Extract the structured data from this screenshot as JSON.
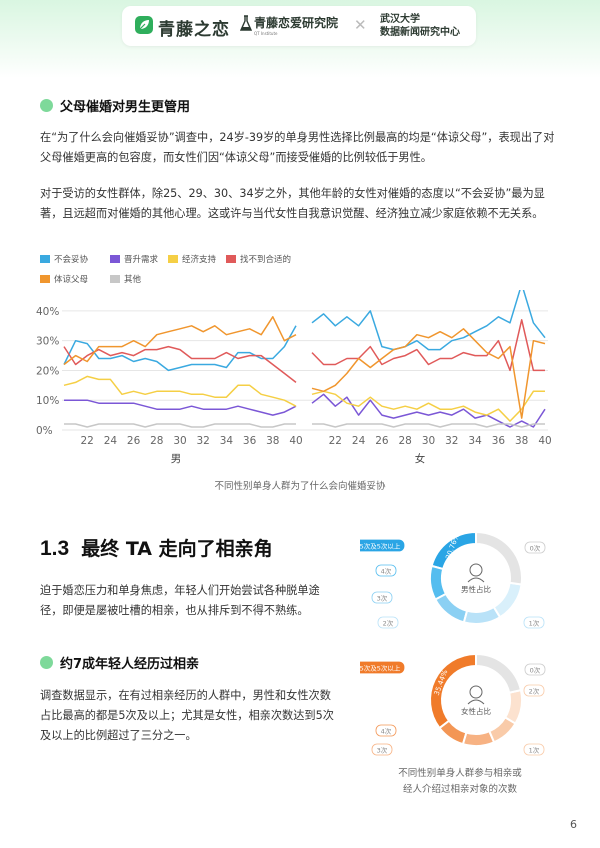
{
  "header": {
    "brand": "青藤之恋",
    "institute": "青藤恋爱研究院",
    "institute_sub": "QT Institute",
    "separator": "✕",
    "partner_line1": "武汉大学",
    "partner_line2": "数据新闻研究中心"
  },
  "section1": {
    "heading": "父母催婚对男生更管用",
    "para1": "在“为了什么会向催婚妥协”调查中，24岁-39岁的单身男性选择比例最高的均是“体谅父母”，表现出了对父母催婚更高的包容度，而女性们因“体谅父母”而接受催婚的比例较低于男性。",
    "para2": "对于受访的女性群体，除25、29、30、34岁之外，其他年龄的女性对催婚的态度以“不会妥协”最为显著，且远超而对催婚的其他心理。这或许与当代女性自我意识觉醒、经济独立减少家庭依赖不无关系。"
  },
  "chart_data": {
    "type": "line",
    "caption": "不同性别单身人群为了什么会向催婚妥协",
    "ylim": [
      0,
      45
    ],
    "yticks": [
      "0%",
      "10%",
      "20%",
      "30%",
      "40%"
    ],
    "ytick_values": [
      0,
      10,
      20,
      30,
      40
    ],
    "x": [
      20,
      21,
      22,
      23,
      24,
      25,
      26,
      27,
      28,
      29,
      30,
      31,
      32,
      33,
      34,
      35,
      36,
      37,
      38,
      39,
      40
    ],
    "xticks": [
      "22",
      "24",
      "26",
      "28",
      "30",
      "32",
      "34",
      "36",
      "38",
      "40"
    ],
    "xtick_values": [
      22,
      24,
      26,
      28,
      30,
      32,
      34,
      36,
      38,
      40
    ],
    "panels": [
      {
        "label": "男",
        "series": [
          {
            "name": "不会妥协",
            "color": "#3aa9e0",
            "values": [
              22,
              30,
              29,
              24,
              24,
              25,
              23,
              24,
              23,
              20,
              21,
              22,
              22,
              22,
              21,
              26,
              26,
              24,
              24,
              28,
              35
            ]
          },
          {
            "name": "晋升需求",
            "color": "#7b57d6",
            "values": [
              10,
              10,
              10,
              9,
              9,
              9,
              9,
              8,
              7,
              7,
              7,
              8,
              7,
              7,
              7,
              8,
              7,
              6,
              5,
              6,
              8
            ]
          },
          {
            "name": "经济支持",
            "color": "#f5cf45",
            "values": [
              15,
              16,
              18,
              17,
              17,
              12,
              13,
              12,
              13,
              13,
              13,
              12,
              12,
              11,
              11,
              15,
              15,
              12,
              11,
              10,
              8
            ]
          },
          {
            "name": "找不到合适的",
            "color": "#e05a5a",
            "values": [
              28,
              22,
              25,
              27,
              25,
              26,
              25,
              27,
              27,
              28,
              27,
              24,
              24,
              24,
              26,
              24,
              25,
              25,
              22,
              19,
              16
            ]
          },
          {
            "name": "体谅父母",
            "color": "#f0962e",
            "values": [
              22,
              25,
              23,
              28,
              28,
              28,
              30,
              28,
              32,
              33,
              34,
              35,
              33,
              35,
              32,
              33,
              34,
              32,
              38,
              30,
              32
            ]
          },
          {
            "name": "其他",
            "color": "#c7c7c7",
            "values": [
              2,
              2,
              1,
              2,
              2,
              2,
              2,
              1,
              2,
              2,
              2,
              1,
              1,
              2,
              2,
              2,
              2,
              1,
              1,
              2,
              2
            ]
          }
        ]
      },
      {
        "label": "女",
        "series": [
          {
            "name": "不会妥协",
            "color": "#3aa9e0",
            "values": [
              36,
              39,
              35,
              38,
              35,
              40,
              28,
              27,
              28,
              30,
              27,
              27,
              30,
              31,
              33,
              35,
              38,
              36,
              49,
              36,
              31
            ]
          },
          {
            "name": "晋升需求",
            "color": "#7b57d6",
            "values": [
              9,
              12,
              8,
              11,
              5,
              10,
              5,
              4,
              5,
              6,
              5,
              6,
              5,
              7,
              4,
              5,
              3,
              1,
              3,
              1,
              7
            ]
          },
          {
            "name": "经济支持",
            "color": "#f5cf45",
            "values": [
              12,
              13,
              12,
              9,
              8,
              11,
              8,
              7,
              8,
              7,
              9,
              7,
              7,
              8,
              6,
              5,
              7,
              3,
              7,
              13,
              13
            ]
          },
          {
            "name": "找不到合适的",
            "color": "#e05a5a",
            "values": [
              26,
              22,
              22,
              24,
              24,
              28,
              22,
              24,
              25,
              27,
              22,
              24,
              24,
              26,
              25,
              25,
              30,
              20,
              37,
              20,
              20
            ]
          },
          {
            "name": "体谅父母",
            "color": "#f0962e",
            "values": [
              14,
              13,
              15,
              19,
              24,
              21,
              24,
              27,
              28,
              32,
              31,
              33,
              31,
              34,
              30,
              26,
              24,
              28,
              4,
              30,
              29
            ]
          },
          {
            "name": "其他",
            "color": "#c7c7c7",
            "values": [
              2,
              2,
              1,
              2,
              2,
              2,
              2,
              1,
              2,
              2,
              2,
              1,
              2,
              2,
              2,
              1,
              2,
              2,
              1,
              2,
              2
            ]
          }
        ]
      }
    ]
  },
  "section2": {
    "number": "1.3",
    "title": "最终 TA 走向了相亲角",
    "para1": "迫于婚恋压力和单身焦虑，年轻人们开始尝试各种脱单途径，即便是屡被吐槽的相亲，也从排斥到不得不熟练。",
    "subheading": "约7成年轻人经历过相亲",
    "para2": "调查数据显示，在有过相亲经历的人群中，男性和女性次数占比最高的都是5次及以上；尤其是女性，相亲次数达到5次及以上的比例超过了三分之一。"
  },
  "donut_data": {
    "type": "pie",
    "caption_line1": "不同性别单身人群参与相亲或",
    "caption_line2": "经人介绍过相亲对象的次数",
    "charts": [
      {
        "center_label": "男性占比",
        "highlight_label": "20.76%",
        "colors": [
          "#2aa5e5",
          "#55bdef",
          "#8bd0f3",
          "#b9e2f8",
          "#d9f0fb",
          "#e4e4e4"
        ],
        "slices": [
          {
            "label": "5次及5次以上",
            "value": 20.76
          },
          {
            "label": "4次",
            "value": 12
          },
          {
            "label": "3次",
            "value": 13
          },
          {
            "label": "2次",
            "value": 13
          },
          {
            "label": "1次",
            "value": 14
          },
          {
            "label": "0次",
            "value": 27.24
          }
        ]
      },
      {
        "center_label": "女性占比",
        "highlight_label": "35.44%",
        "colors": [
          "#f07b2a",
          "#f39655",
          "#f7b283",
          "#f9cba9",
          "#fce2cf",
          "#e4e4e4"
        ],
        "slices": [
          {
            "label": "5次及5次以上",
            "value": 35.44
          },
          {
            "label": "4次",
            "value": 10
          },
          {
            "label": "3次",
            "value": 11
          },
          {
            "label": "2次",
            "value": 10
          },
          {
            "label": "1次",
            "value": 12
          },
          {
            "label": "0次",
            "value": 21.56
          }
        ]
      }
    ]
  },
  "page_number": "6"
}
